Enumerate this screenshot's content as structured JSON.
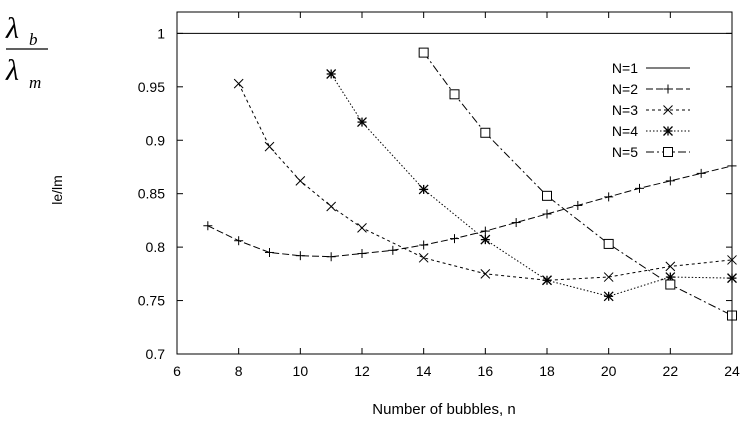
{
  "chart_data": {
    "type": "line",
    "ylabel": "le/lm",
    "xlabel": "Number of bubbles, n",
    "fraction_label": {
      "numerator": "λ",
      "numerator_sub": "b",
      "denominator": "λ",
      "denominator_sub": "m"
    },
    "xlim": [
      6,
      24
    ],
    "ylim": [
      0.7,
      1.02
    ],
    "x_ticks": [
      6,
      8,
      10,
      12,
      14,
      16,
      18,
      20,
      22,
      24
    ],
    "y_ticks": [
      0.7,
      0.75,
      0.8,
      0.85,
      0.9,
      0.95,
      1
    ],
    "x_tick_labels": [
      "6",
      "8",
      "10",
      "12",
      "14",
      "16",
      "18",
      "20",
      "22",
      "24"
    ],
    "y_tick_labels": [
      "0.7",
      "0.75",
      "0.8",
      "0.85",
      "0.9",
      "0.95",
      "1"
    ],
    "grid": false,
    "legend_position": "top-right",
    "series": [
      {
        "name": "N=1",
        "marker": "none",
        "dash": "solid",
        "x": [
          6,
          24
        ],
        "y": [
          1,
          1
        ]
      },
      {
        "name": "N=2",
        "marker": "plus",
        "dash": "dashed",
        "x": [
          7,
          8,
          9,
          10,
          11,
          12,
          13,
          14,
          15,
          16,
          17,
          18,
          19,
          20,
          21,
          22,
          23,
          24
        ],
        "y": [
          0.82,
          0.806,
          0.795,
          0.792,
          0.791,
          0.794,
          0.797,
          0.802,
          0.808,
          0.815,
          0.823,
          0.831,
          0.839,
          0.847,
          0.855,
          0.862,
          0.869,
          0.876
        ]
      },
      {
        "name": "N=3",
        "marker": "x",
        "dash": "short-dash",
        "x": [
          8,
          9,
          10,
          11,
          12,
          14,
          16,
          18,
          20,
          22,
          24
        ],
        "y": [
          0.953,
          0.894,
          0.862,
          0.838,
          0.818,
          0.79,
          0.775,
          0.769,
          0.772,
          0.782,
          0.788
        ]
      },
      {
        "name": "N=4",
        "marker": "star",
        "dash": "dotted",
        "x": [
          11,
          12,
          14,
          16,
          18,
          20,
          22,
          24
        ],
        "y": [
          0.962,
          0.917,
          0.854,
          0.807,
          0.769,
          0.754,
          0.772,
          0.771
        ]
      },
      {
        "name": "N=5",
        "marker": "square",
        "dash": "dash-dot",
        "x": [
          14,
          15,
          16,
          18,
          20,
          22,
          24
        ],
        "y": [
          0.982,
          0.943,
          0.907,
          0.848,
          0.803,
          0.765,
          0.736
        ]
      }
    ]
  }
}
